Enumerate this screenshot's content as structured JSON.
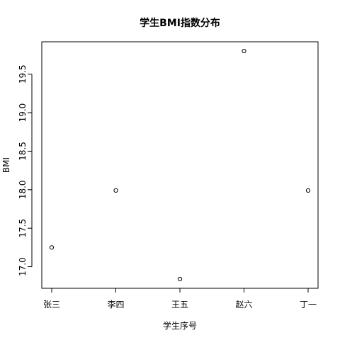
{
  "chart_data": {
    "type": "scatter",
    "title": "学生BMI指数分布",
    "xlabel": "学生序号",
    "ylabel": "BMI",
    "categories": [
      "张三",
      "李四",
      "王五",
      "赵六",
      "丁一"
    ],
    "values": [
      17.25,
      17.99,
      16.84,
      19.8,
      17.99
    ],
    "yticks": [
      "17.0",
      "17.5",
      "18.0",
      "18.5",
      "19.0",
      "19.5"
    ],
    "ylim": [
      16.72,
      19.92
    ],
    "grid": false,
    "marker": "open-circle"
  }
}
